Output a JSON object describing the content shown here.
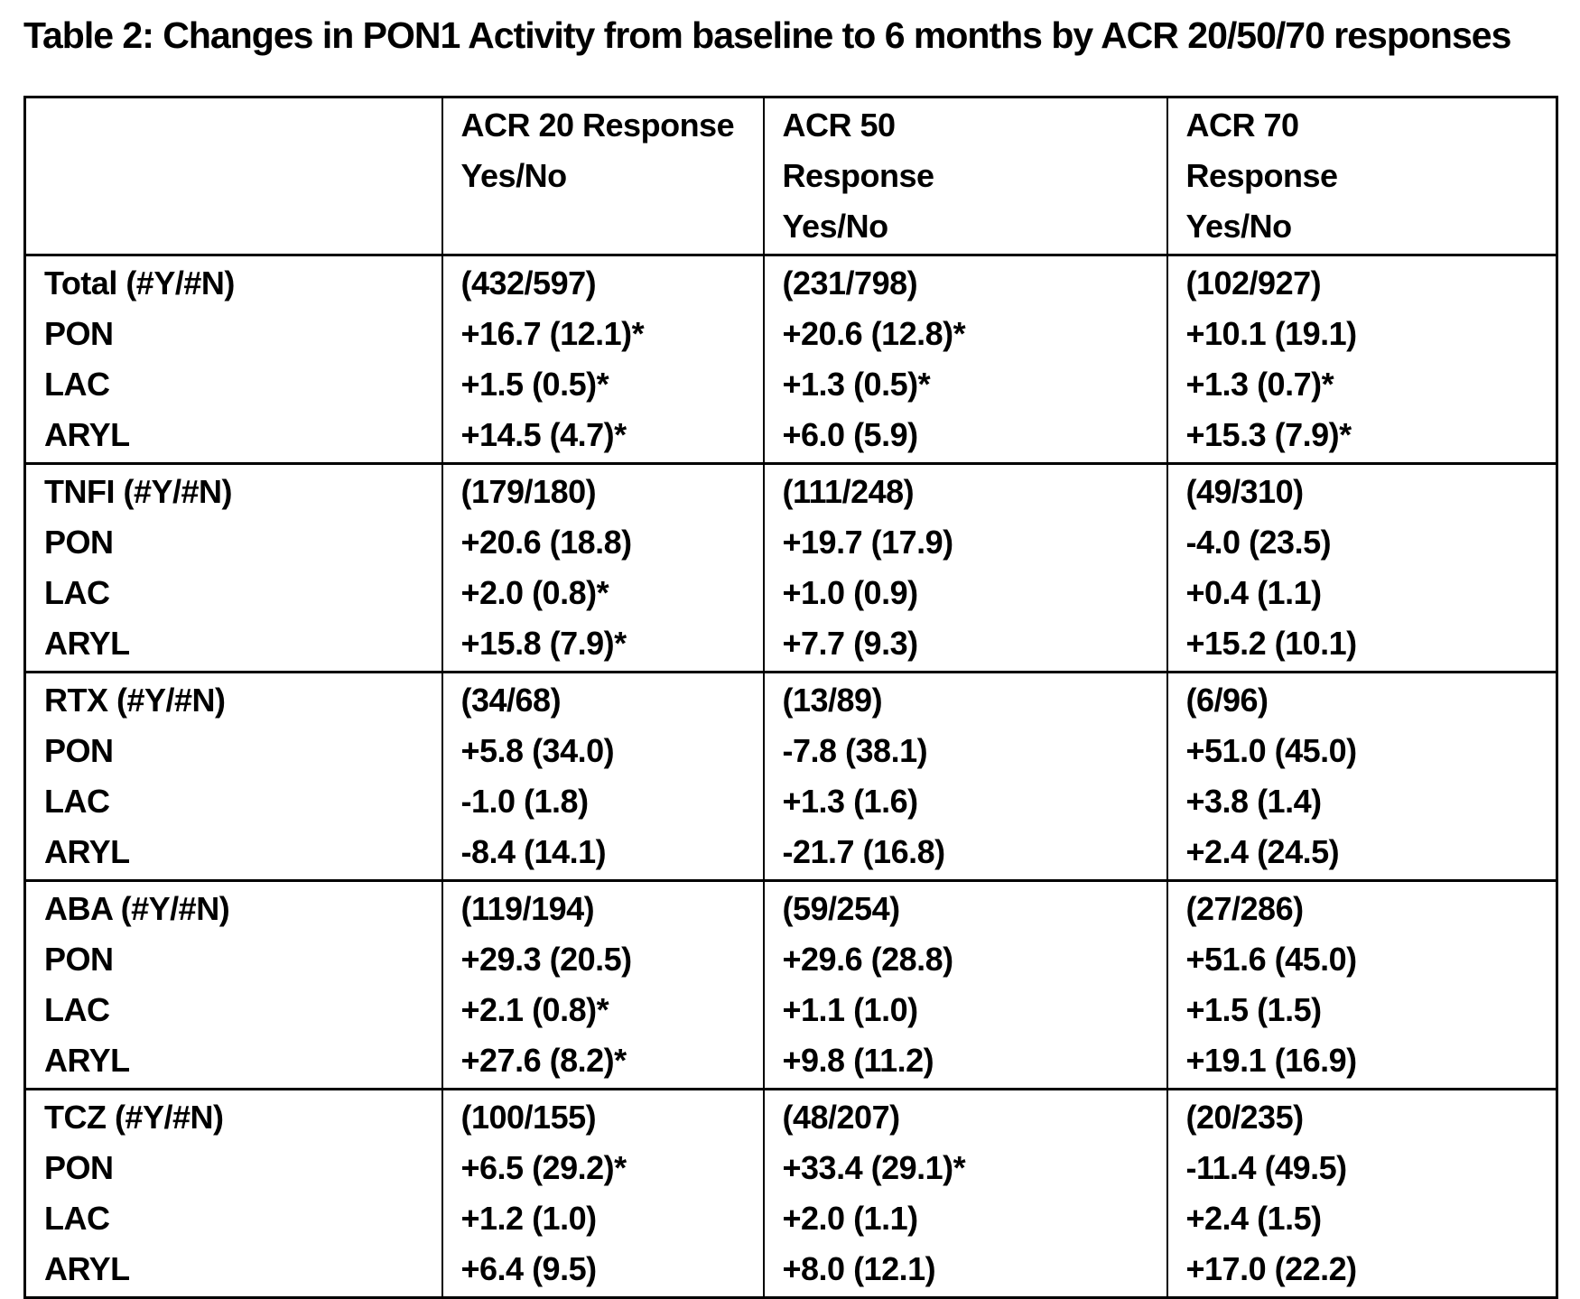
{
  "title": "Table 2: Changes in PON1 Activity from baseline to 6 months by ACR 20/50/70 responses",
  "table": {
    "headers": [
      "",
      "ACR 20 Response\nYes/No",
      "ACR 50\nResponse\nYes/No",
      "ACR 70\nResponse\nYes/No"
    ],
    "groups": [
      {
        "name": "Total",
        "rows": [
          [
            "Total (#Y/#N)",
            "(432/597)",
            "(231/798)",
            "(102/927)"
          ],
          [
            "PON",
            "+16.7 (12.1)*",
            "+20.6 (12.8)*",
            "+10.1 (19.1)"
          ],
          [
            "LAC",
            "+1.5 (0.5)*",
            "+1.3 (0.5)*",
            "+1.3 (0.7)*"
          ],
          [
            "ARYL",
            "+14.5 (4.7)*",
            "+6.0 (5.9)",
            "+15.3 (7.9)*"
          ]
        ]
      },
      {
        "name": "TNFI",
        "rows": [
          [
            "TNFI (#Y/#N)",
            "(179/180)",
            "(111/248)",
            "(49/310)"
          ],
          [
            "PON",
            "+20.6 (18.8)",
            "+19.7 (17.9)",
            "-4.0 (23.5)"
          ],
          [
            "LAC",
            "+2.0 (0.8)*",
            "+1.0 (0.9)",
            "+0.4 (1.1)"
          ],
          [
            "ARYL",
            "+15.8 (7.9)*",
            "+7.7 (9.3)",
            "+15.2 (10.1)"
          ]
        ]
      },
      {
        "name": "RTX",
        "rows": [
          [
            "RTX (#Y/#N)",
            "(34/68)",
            "(13/89)",
            "(6/96)"
          ],
          [
            "PON",
            "+5.8 (34.0)",
            "-7.8 (38.1)",
            "+51.0 (45.0)"
          ],
          [
            "LAC",
            "-1.0 (1.8)",
            "+1.3 (1.6)",
            "+3.8 (1.4)"
          ],
          [
            "ARYL",
            "-8.4 (14.1)",
            "-21.7 (16.8)",
            "+2.4 (24.5)"
          ]
        ]
      },
      {
        "name": "ABA",
        "rows": [
          [
            "ABA (#Y/#N)",
            "(119/194)",
            "(59/254)",
            "(27/286)"
          ],
          [
            "PON",
            "+29.3 (20.5)",
            "+29.6 (28.8)",
            "+51.6 (45.0)"
          ],
          [
            "LAC",
            "+2.1 (0.8)*",
            "+1.1 (1.0)",
            "+1.5 (1.5)"
          ],
          [
            "ARYL",
            "+27.6 (8.2)*",
            "+9.8 (11.2)",
            "+19.1 (16.9)"
          ]
        ]
      },
      {
        "name": "TCZ",
        "rows": [
          [
            "TCZ (#Y/#N)",
            "(100/155)",
            "(48/207)",
            "(20/235)"
          ],
          [
            "PON",
            "+6.5 (29.2)*",
            "+33.4 (29.1)*",
            "-11.4 (49.5)"
          ],
          [
            "LAC",
            "+1.2 (1.0)",
            "+2.0 (1.1)",
            "+2.4 (1.5)"
          ],
          [
            "ARYL",
            "+6.4 (9.5)",
            "+8.0 (12.1)",
            "+17.0 (22.2)"
          ]
        ]
      }
    ]
  }
}
